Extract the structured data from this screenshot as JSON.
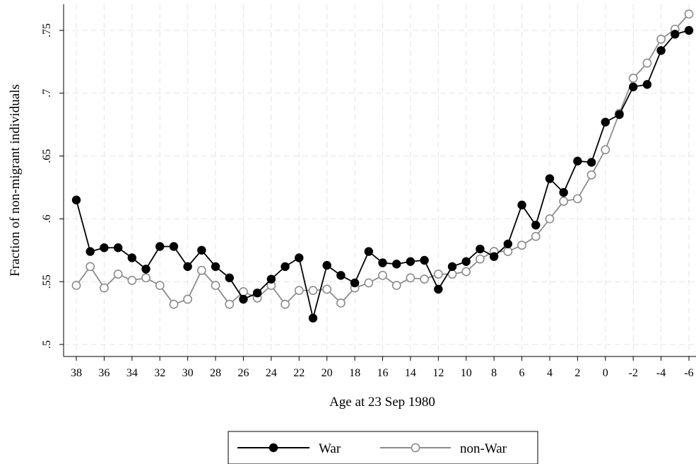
{
  "chart_data": {
    "type": "line",
    "xlabel": "Age at 23 Sep 1980",
    "ylabel": "Fraction of non-migrant individuals",
    "x_reversed": true,
    "xlim": [
      -6.5,
      38.5
    ],
    "ylim": [
      0.495,
      0.77
    ],
    "x_ticks": [
      38,
      36,
      34,
      32,
      30,
      28,
      26,
      24,
      22,
      20,
      18,
      16,
      14,
      12,
      10,
      8,
      6,
      4,
      2,
      0,
      -2,
      -4,
      -6
    ],
    "x_tick_labels": [
      "38",
      "36",
      "34",
      "32",
      "30",
      "28",
      "26",
      "24",
      "22",
      "20",
      "18",
      "16",
      "14",
      "12",
      "10",
      "8",
      "6",
      "4",
      "2",
      "0",
      "-2",
      "-4",
      "-6"
    ],
    "y_ticks": [
      0.5,
      0.55,
      0.6,
      0.65,
      0.7,
      0.75
    ],
    "y_tick_labels": [
      ".5",
      ".55",
      ".6",
      ".65",
      ".7",
      ".75"
    ],
    "grid": true,
    "legend_position": "bottom",
    "x": [
      38,
      37,
      36,
      35,
      34,
      33,
      32,
      31,
      30,
      29,
      28,
      27,
      26,
      25,
      24,
      23,
      22,
      21,
      20,
      19,
      18,
      17,
      16,
      15,
      14,
      13,
      12,
      11,
      10,
      9,
      8,
      7,
      6,
      5,
      4,
      3,
      2,
      1,
      0,
      -1,
      -2,
      -3,
      -4,
      -5,
      -6
    ],
    "series": [
      {
        "name": "War",
        "color": "#000000",
        "marker": "filled-circle",
        "values": [
          0.615,
          0.574,
          0.577,
          0.577,
          0.569,
          0.56,
          0.578,
          0.578,
          0.562,
          0.575,
          0.562,
          0.553,
          0.536,
          0.541,
          0.552,
          0.562,
          0.569,
          0.521,
          0.563,
          0.555,
          0.549,
          0.574,
          0.565,
          0.564,
          0.566,
          0.567,
          0.544,
          0.562,
          0.566,
          0.576,
          0.57,
          0.58,
          0.611,
          0.595,
          0.632,
          0.621,
          0.646,
          0.645,
          0.677,
          0.683,
          0.705,
          0.707,
          0.734,
          0.747,
          0.75
        ]
      },
      {
        "name": "non-War",
        "color": "#8c8c8c",
        "marker": "hollow-circle",
        "values": [
          0.547,
          0.562,
          0.545,
          0.556,
          0.551,
          0.553,
          0.547,
          0.532,
          0.536,
          0.559,
          0.547,
          0.532,
          0.542,
          0.537,
          0.547,
          0.532,
          0.543,
          0.543,
          0.544,
          0.533,
          0.545,
          0.549,
          0.555,
          0.547,
          0.553,
          0.552,
          0.556,
          0.556,
          0.558,
          0.568,
          0.574,
          0.574,
          0.579,
          0.586,
          0.6,
          0.614,
          0.616,
          0.635,
          0.655,
          0.684,
          0.712,
          0.724,
          0.743,
          0.751,
          0.763
        ]
      }
    ]
  }
}
